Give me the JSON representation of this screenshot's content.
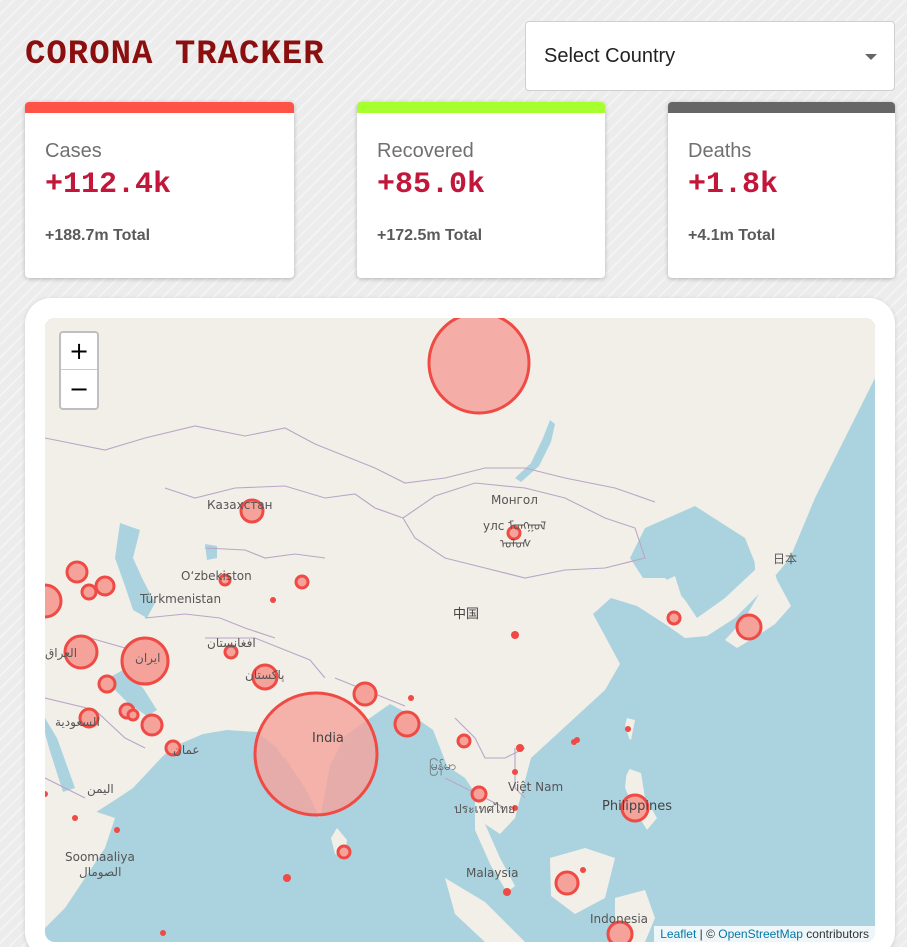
{
  "header": {
    "title": "CORONA TRACKER",
    "country_select": {
      "value": "Select Country",
      "icon": "chevron-down-icon"
    }
  },
  "stats": [
    {
      "label": "Cases",
      "value": "+112.4k",
      "total": "+188.7m Total",
      "color": "#ff5347"
    },
    {
      "label": "Recovered",
      "value": "+85.0k",
      "total": "+172.5m Total",
      "color": "#a8ff2e"
    },
    {
      "label": "Deaths",
      "value": "+1.8k",
      "total": "+4.1m Total",
      "color": "#666666"
    }
  ],
  "map": {
    "zoom_in": "+",
    "zoom_out": "−",
    "attribution": {
      "leaflet": "Leaflet",
      "separator": " | © ",
      "osm": "OpenStreetMap",
      "suffix": " contributors"
    },
    "labels": {
      "kazakhstan": "Казахстан",
      "mongolia_1": "Монгол",
      "mongolia_2": "улс ᠮᠣᠩᠭᠣᠯ",
      "mongolia_3": "ᠤᠯᠤᠰ",
      "china": "中国",
      "japan": "日本",
      "uzbekistan": "O‘zbekiston",
      "turkmenistan": "Türkmenistan",
      "afghanistan": "افغانستان",
      "iraq": "العراق",
      "iran": "ایران",
      "pakistan": "پاکستان",
      "india": "India",
      "saudi": "السعودية",
      "oman": "عمان",
      "yemen": "اليمن",
      "myanmar": "မြန်မာ",
      "vietnam": "Việt Nam",
      "thailand": "ประเทศไทย",
      "philippines": "Philippines",
      "somalia_1": "Soomaaliya",
      "somalia_2": "الصومال",
      "malaysia": "Malaysia",
      "indonesia": "Indonesia"
    }
  }
}
